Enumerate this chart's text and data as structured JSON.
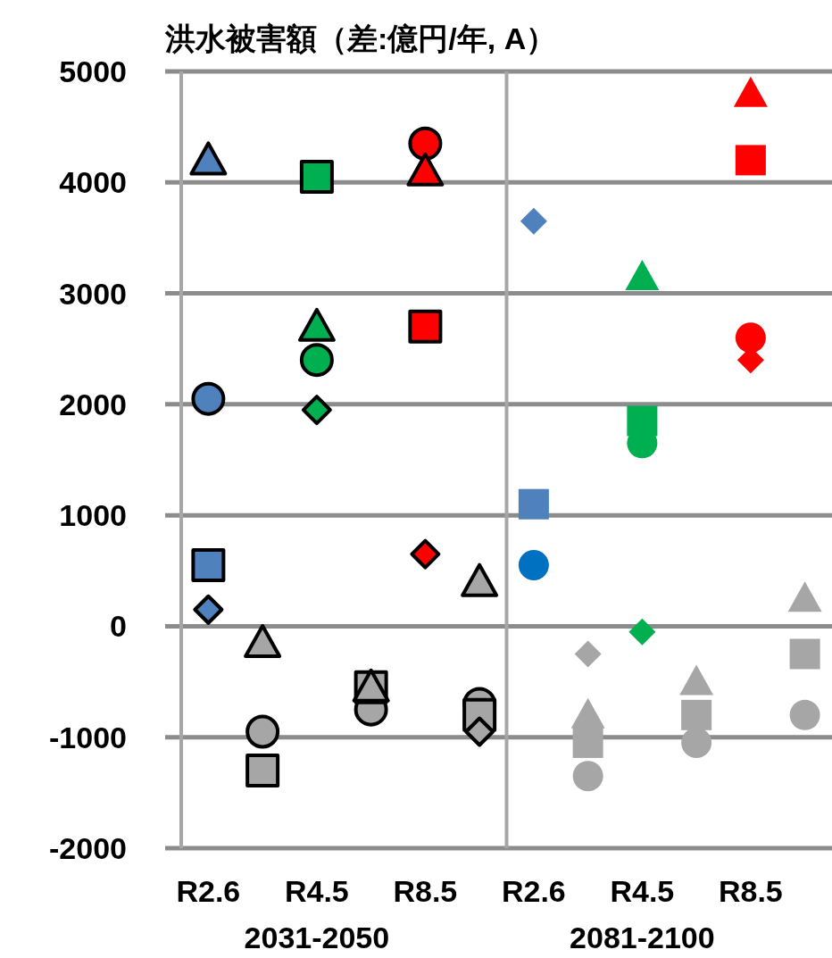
{
  "chart_data": {
    "type": "scatter",
    "title": "洪水被害額（差:億円/年, A）",
    "categories": [
      "R2.6",
      null,
      "R4.5",
      null,
      "R8.5",
      null,
      "R2.6",
      null,
      "R4.5",
      null,
      "R8.5",
      null
    ],
    "ylim": [
      -2000,
      5000
    ],
    "yticks": [
      -2000,
      -1000,
      0,
      1000,
      2000,
      3000,
      4000,
      5000
    ],
    "grid": "y",
    "annotations": [
      "2031-2050",
      "2081-2100"
    ],
    "series": [
      {
        "marker": "circle",
        "values": [
          2050,
          null,
          2400,
          null,
          4350,
          null,
          550,
          null,
          1650,
          null,
          2600,
          null
        ],
        "colors": [
          "#4f81bd",
          null,
          "#00b050",
          null,
          "#ff0000",
          null,
          "#0070c0",
          null,
          "#00b050",
          null,
          "#ff0000",
          null
        ]
      },
      {
        "marker": "square",
        "values": [
          550,
          null,
          4050,
          null,
          2700,
          null,
          1100,
          null,
          1850,
          null,
          4200,
          null
        ],
        "colors": [
          "#4f81bd",
          null,
          "#00b050",
          null,
          "#ff0000",
          null,
          "#4f81bd",
          null,
          "#00b050",
          null,
          "#ff0000",
          null
        ]
      },
      {
        "marker": "triangle",
        "values": [
          4200,
          null,
          2700,
          null,
          4100,
          null,
          null,
          null,
          3150,
          null,
          4800,
          null
        ],
        "colors": [
          "#4f81bd",
          null,
          "#00b050",
          null,
          "#ff0000",
          null,
          null,
          null,
          "#00b050",
          null,
          "#ff0000",
          null
        ]
      },
      {
        "marker": "diamond",
        "values": [
          150,
          null,
          1950,
          null,
          650,
          null,
          3650,
          null,
          -50,
          null,
          2400,
          null
        ],
        "colors": [
          "#4f81bd",
          null,
          "#00b050",
          null,
          "#ff0000",
          null,
          "#4f81bd",
          null,
          "#00b050",
          null,
          "#ff0000",
          null
        ]
      },
      {
        "marker": "circle",
        "color": "#a6a6a6",
        "values": [
          null,
          -950,
          null,
          -750,
          null,
          -700,
          null,
          -1350,
          null,
          -1050,
          null,
          -800
        ]
      },
      {
        "marker": "square",
        "color": "#a6a6a6",
        "values": [
          null,
          -1300,
          null,
          -550,
          null,
          -800,
          null,
          -1050,
          null,
          -800,
          null,
          -250
        ]
      },
      {
        "marker": "triangle",
        "color": "#a6a6a6",
        "values": [
          null,
          -150,
          null,
          -550,
          null,
          400,
          null,
          -800,
          null,
          -500,
          null,
          250
        ]
      },
      {
        "marker": "diamond",
        "color": "#a6a6a6",
        "values": [
          null,
          null,
          null,
          null,
          null,
          -950,
          null,
          -250,
          null,
          null,
          null,
          null
        ]
      }
    ]
  }
}
